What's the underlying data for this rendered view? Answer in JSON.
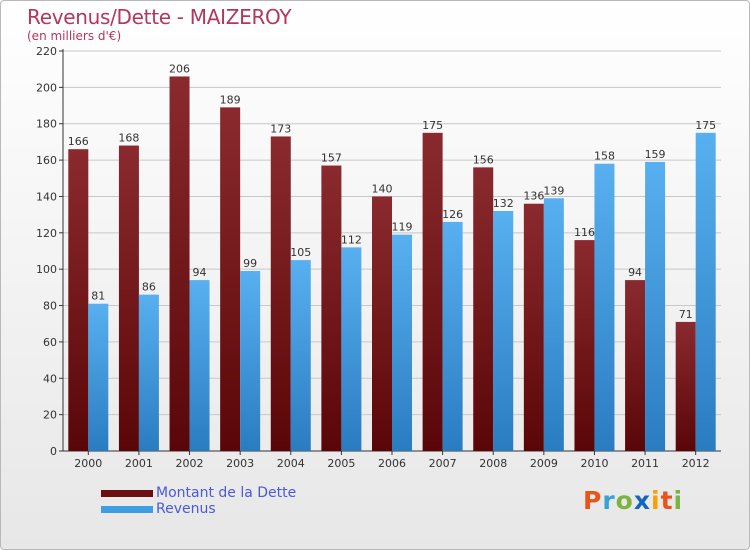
{
  "header": {
    "title": "Revenus/Dette - MAIZEROY",
    "subtitle": "(en milliers d'€)"
  },
  "legend": {
    "items": [
      {
        "label": "Montant de la Dette",
        "color": "#6b0f12"
      },
      {
        "label": "Revenus",
        "color": "#3e9ee0"
      }
    ]
  },
  "logo": {
    "letters": [
      "P",
      "r",
      "o",
      "x",
      "i",
      "t",
      "i"
    ],
    "colors": [
      "#e8541a",
      "#3aa0d8",
      "#7cb342",
      "#1565c0",
      "#f6a100",
      "#e8541a",
      "#7cb342"
    ]
  },
  "chart_data": {
    "type": "bar",
    "title": "Revenus/Dette - MAIZEROY",
    "subtitle": "(en milliers d'€)",
    "categories": [
      "2000",
      "2001",
      "2002",
      "2003",
      "2004",
      "2005",
      "2006",
      "2007",
      "2008",
      "2009",
      "2010",
      "2011",
      "2012"
    ],
    "series": [
      {
        "name": "Montant de la Dette",
        "color": "#7a1e22",
        "values": [
          166,
          168,
          206,
          189,
          173,
          157,
          140,
          175,
          156,
          136,
          116,
          94,
          71
        ]
      },
      {
        "name": "Revenus",
        "color": "#4aa3e6",
        "values": [
          81,
          86,
          94,
          99,
          105,
          112,
          119,
          126,
          132,
          139,
          158,
          159,
          175
        ]
      }
    ],
    "ylim": [
      0,
      220
    ],
    "yticks": [
      0,
      20,
      40,
      60,
      80,
      100,
      120,
      140,
      160,
      180,
      200,
      220
    ],
    "grid": true,
    "legend_position": "bottom-left"
  }
}
